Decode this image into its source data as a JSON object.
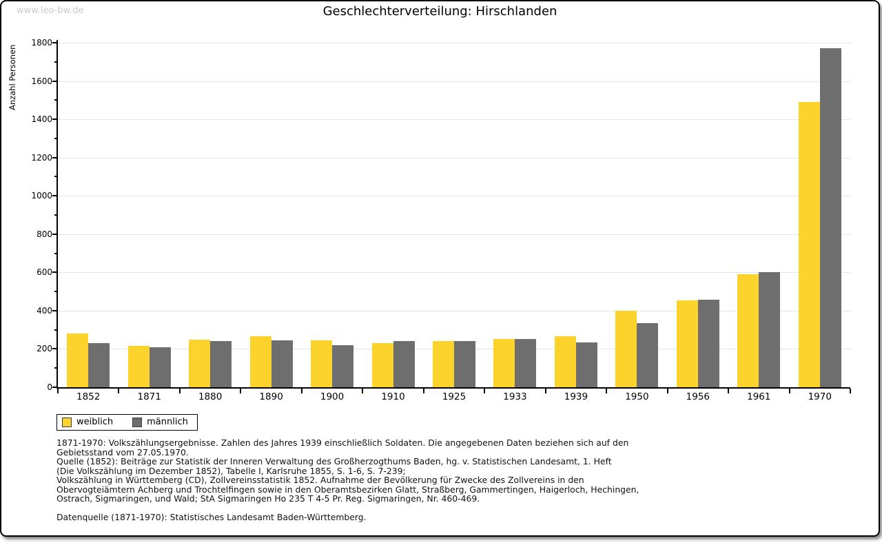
{
  "watermark": "www.leo-bw.de",
  "title": "Geschlechterverteilung: Hirschlanden",
  "chart_data": {
    "type": "bar",
    "title": "Geschlechterverteilung: Hirschlanden",
    "xlabel": "",
    "ylabel": "Anzahl Personen",
    "ylim": [
      0,
      1800
    ],
    "y_major_step": 200,
    "y_minor_step": 100,
    "grid": true,
    "legend_position": "bottom-left",
    "categories": [
      "1852",
      "1871",
      "1880",
      "1890",
      "1900",
      "1910",
      "1925",
      "1933",
      "1939",
      "1950",
      "1956",
      "1961",
      "1970"
    ],
    "series": [
      {
        "name": "weiblich",
        "color": "#fcd22d",
        "values": [
          280,
          215,
          248,
          266,
          244,
          232,
          240,
          251,
          265,
          398,
          453,
          590,
          1490
        ]
      },
      {
        "name": "männlich",
        "color": "#6e6e6e",
        "values": [
          232,
          209,
          240,
          245,
          218,
          240,
          241,
          252,
          233,
          334,
          458,
          602,
          1770
        ]
      }
    ]
  },
  "legend": {
    "items": [
      {
        "label": "weiblich",
        "color": "#fcd22d"
      },
      {
        "label": "männlich",
        "color": "#6e6e6e"
      }
    ]
  },
  "footer": {
    "lines": [
      "1871-1970: Volkszählungsergebnisse. Zahlen des Jahres 1939 einschließlich Soldaten. Die angegebenen Daten beziehen sich auf den",
      "Gebietsstand vom 27.05.1970.",
      "Quelle (1852): Beiträge zur Statistik der Inneren Verwaltung des Großherzogthums Baden, hg. v. Statistischen Landesamt, 1. Heft",
      "(Die Volkszählung im Dezember 1852), Tabelle I, Karlsruhe 1855, S. 1-6, S. 7-239;",
      "Volkszählung in Württemberg (CD), Zollvereinsstatistik 1852. Aufnahme der Bevölkerung für Zwecke des Zollvereins in den",
      "Obervogteiämtern Achberg und Trochtelfingen sowie in den Oberamtsbezirken Glatt, Straßberg, Gammertingen, Haigerloch, Hechingen,",
      "Ostrach, Sigmaringen, und Wald; StA Sigmaringen Ho 235 T 4-5 Pr. Reg. Sigmaringen, Nr. 460-469."
    ],
    "datasource": "Datenquelle (1871-1970): Statistisches Landesamt Baden-Württemberg."
  },
  "colors": {
    "weiblich": "#fcd22d",
    "männlich": "#6e6e6e",
    "gridline": "#e4e4e4",
    "watermark": "#c9c9c9",
    "frame_border": "#000000"
  }
}
